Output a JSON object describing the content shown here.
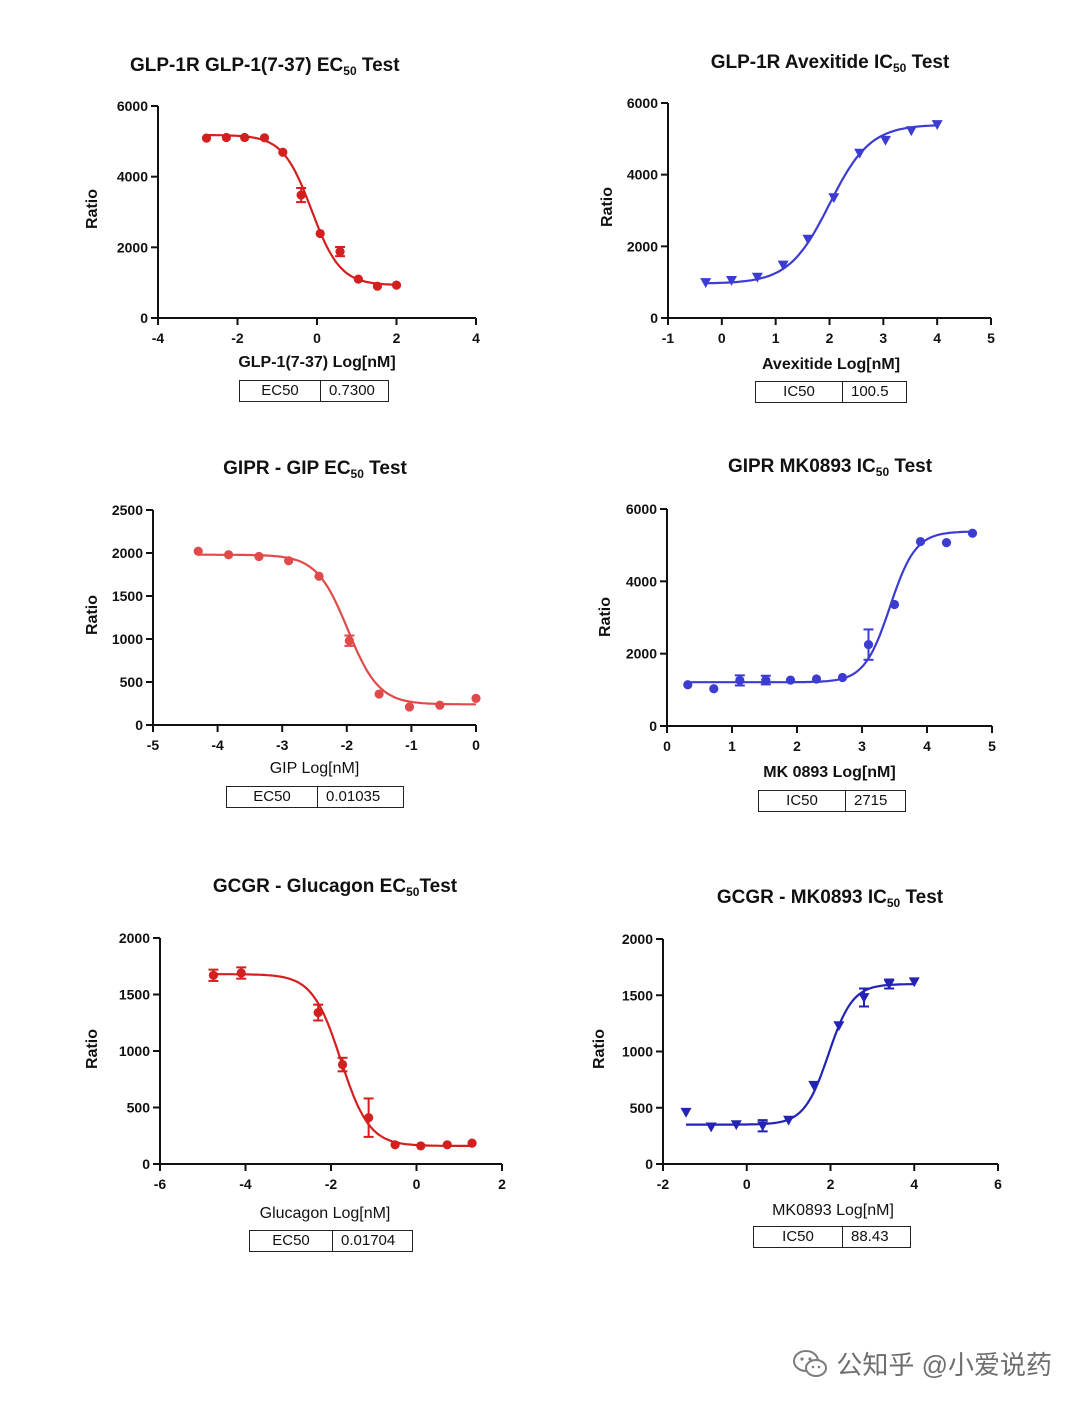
{
  "charts": [
    {
      "id": "glp1r-glp1",
      "title_pre": "GLP-1R GLP-1(7-37) EC",
      "title_sub": "50",
      "title_post": " Test",
      "type": "scatter",
      "color": "#d41f1f",
      "marker": "circle",
      "xlabel": "GLP-1(7-37)  Log[nM]",
      "ylabel": "Ratio",
      "xlim": [
        -4,
        4
      ],
      "ylim": [
        0,
        6000
      ],
      "xticks": [
        -4,
        -2,
        0,
        2,
        4
      ],
      "yticks": [
        0,
        2000,
        4000,
        6000
      ],
      "curve": {
        "bottom": 930,
        "top": 5180,
        "logEC50": -0.137,
        "hill": -1.2
      },
      "points": [
        {
          "x": -2.78,
          "y": 5090
        },
        {
          "x": -2.28,
          "y": 5110
        },
        {
          "x": -1.82,
          "y": 5110
        },
        {
          "x": -1.32,
          "y": 5100
        },
        {
          "x": -0.86,
          "y": 4690
        },
        {
          "x": -0.4,
          "y": 3480,
          "err": 200
        },
        {
          "x": 0.08,
          "y": 2390
        },
        {
          "x": 0.58,
          "y": 1880,
          "err": 130
        },
        {
          "x": 1.04,
          "y": 1100
        },
        {
          "x": 1.52,
          "y": 900
        },
        {
          "x": 2.0,
          "y": 930
        }
      ],
      "result_label": "EC50",
      "result_value": "0.7300"
    },
    {
      "id": "glp1r-avexitide",
      "title_pre": "GLP-1R  Avexitide IC",
      "title_sub": "50",
      "title_post": " Test",
      "type": "scatter",
      "color": "#3c3cd2",
      "marker": "triangle",
      "xlabel": "Avexitide Log[nM]",
      "ylabel": "Ratio",
      "xlim": [
        -1,
        5
      ],
      "ylim": [
        0,
        6000
      ],
      "xticks": [
        -1,
        0,
        1,
        2,
        3,
        4,
        5
      ],
      "yticks": [
        0,
        2000,
        4000,
        6000
      ],
      "curve": {
        "bottom": 960,
        "top": 5400,
        "logEC50": 2.0,
        "hill": 1.15
      },
      "points": [
        {
          "x": -0.3,
          "y": 990
        },
        {
          "x": 0.18,
          "y": 1050
        },
        {
          "x": 0.66,
          "y": 1140
        },
        {
          "x": 1.14,
          "y": 1480
        },
        {
          "x": 1.6,
          "y": 2200
        },
        {
          "x": 2.08,
          "y": 3360
        },
        {
          "x": 2.56,
          "y": 4600
        },
        {
          "x": 3.04,
          "y": 4960
        },
        {
          "x": 3.52,
          "y": 5230
        },
        {
          "x": 4.0,
          "y": 5400
        }
      ],
      "result_label": "IC50",
      "result_value": "100.5"
    },
    {
      "id": "gipr-gip",
      "title_pre": "GIPR - GIP EC",
      "title_sub": "50",
      "title_post": " Test",
      "type": "scatter",
      "color": "#e04a4a",
      "marker": "circle",
      "xlabel": "GIP Log[nM]",
      "ylabel": "Ratio",
      "xlim": [
        -5,
        0
      ],
      "ylim": [
        0,
        2500
      ],
      "xticks": [
        -5,
        -4,
        -3,
        -2,
        -1,
        0
      ],
      "yticks": [
        0,
        500,
        1000,
        1500,
        2000,
        2500
      ],
      "curve": {
        "bottom": 240,
        "top": 1980,
        "logEC50": -1.985,
        "hill": -1.8
      },
      "points": [
        {
          "x": -4.3,
          "y": 2020
        },
        {
          "x": -3.83,
          "y": 1980
        },
        {
          "x": -3.36,
          "y": 1960
        },
        {
          "x": -2.9,
          "y": 1910
        },
        {
          "x": -2.43,
          "y": 1730
        },
        {
          "x": -1.96,
          "y": 980,
          "err": 60
        },
        {
          "x": -1.5,
          "y": 360
        },
        {
          "x": -1.03,
          "y": 210
        },
        {
          "x": -0.56,
          "y": 230
        },
        {
          "x": 0.0,
          "y": 310
        }
      ],
      "result_label": "EC50",
      "result_value": "0.01035"
    },
    {
      "id": "gipr-mk0893",
      "title_pre": "GIPR MK0893 IC",
      "title_sub": "50",
      "title_post": " Test",
      "type": "scatter",
      "color": "#3c3cd2",
      "marker": "circle",
      "xlabel": "MK 0893 Log[nM]",
      "ylabel": "Ratio",
      "xlim": [
        0,
        5
      ],
      "ylim": [
        0,
        6000
      ],
      "xticks": [
        0,
        1,
        2,
        3,
        4,
        5
      ],
      "yticks": [
        0,
        2000,
        4000,
        6000
      ],
      "curve": {
        "bottom": 1210,
        "top": 5380,
        "logEC50": 3.43,
        "hill": 2.2
      },
      "points": [
        {
          "x": 0.32,
          "y": 1140
        },
        {
          "x": 0.72,
          "y": 1030
        },
        {
          "x": 1.12,
          "y": 1260,
          "err": 140
        },
        {
          "x": 1.52,
          "y": 1270,
          "err": 120
        },
        {
          "x": 1.9,
          "y": 1270
        },
        {
          "x": 2.3,
          "y": 1300
        },
        {
          "x": 2.7,
          "y": 1340
        },
        {
          "x": 3.1,
          "y": 2250,
          "err": 420
        },
        {
          "x": 3.5,
          "y": 3360
        },
        {
          "x": 3.9,
          "y": 5100
        },
        {
          "x": 4.3,
          "y": 5070
        },
        {
          "x": 4.7,
          "y": 5330
        }
      ],
      "result_label": "IC50",
      "result_value": "2715"
    },
    {
      "id": "gcgr-glucagon",
      "title_pre": "GCGR - Glucagon EC",
      "title_sub": "50",
      "title_post": "Test",
      "type": "scatter",
      "color": "#d41f1f",
      "marker": "circle",
      "xlabel": "Glucagon Log[nM]",
      "ylabel": "Ratio",
      "xlim": [
        -6,
        2
      ],
      "ylim": [
        0,
        2000
      ],
      "xticks": [
        -6,
        -4,
        -2,
        0,
        2
      ],
      "yticks": [
        0,
        500,
        1000,
        1500,
        2000
      ],
      "curve": {
        "bottom": 160,
        "top": 1680,
        "logEC50": -1.77,
        "hill": -1.3
      },
      "points": [
        {
          "x": -4.75,
          "y": 1670,
          "err": 50
        },
        {
          "x": -4.1,
          "y": 1690,
          "err": 50
        },
        {
          "x": -2.3,
          "y": 1340,
          "err": 70
        },
        {
          "x": -1.73,
          "y": 880,
          "err": 60
        },
        {
          "x": -1.12,
          "y": 410,
          "err": 170
        },
        {
          "x": -0.5,
          "y": 170
        },
        {
          "x": 0.1,
          "y": 160
        },
        {
          "x": 0.72,
          "y": 170
        },
        {
          "x": 1.3,
          "y": 185
        }
      ],
      "result_label": "EC50",
      "result_value": "0.01704"
    },
    {
      "id": "gcgr-mk0893",
      "title_pre": "GCGR - MK0893 IC",
      "title_sub": "50",
      "title_post": " Test",
      "type": "scatter",
      "color": "#2323b4",
      "marker": "triangle",
      "xlabel": "MK0893  Log[nM]",
      "ylabel": "Ratio",
      "xlim": [
        -2,
        6
      ],
      "ylim": [
        0,
        2000
      ],
      "xticks": [
        -2,
        0,
        2,
        4,
        6
      ],
      "yticks": [
        0,
        500,
        1000,
        1500,
        2000
      ],
      "curve": {
        "bottom": 350,
        "top": 1600,
        "logEC50": 1.95,
        "hill": 1.5
      },
      "points": [
        {
          "x": -1.45,
          "y": 460
        },
        {
          "x": -0.85,
          "y": 330
        },
        {
          "x": -0.25,
          "y": 350
        },
        {
          "x": 0.38,
          "y": 340,
          "err": 50
        },
        {
          "x": 1.0,
          "y": 390
        },
        {
          "x": 1.6,
          "y": 700
        },
        {
          "x": 2.2,
          "y": 1230
        },
        {
          "x": 2.8,
          "y": 1480,
          "err": 80
        },
        {
          "x": 3.4,
          "y": 1600,
          "err": 40
        },
        {
          "x": 4.0,
          "y": 1620
        }
      ],
      "result_label": "IC50",
      "result_value": "88.43"
    }
  ],
  "watermark": {
    "text": "公知乎 @小爱说药"
  }
}
